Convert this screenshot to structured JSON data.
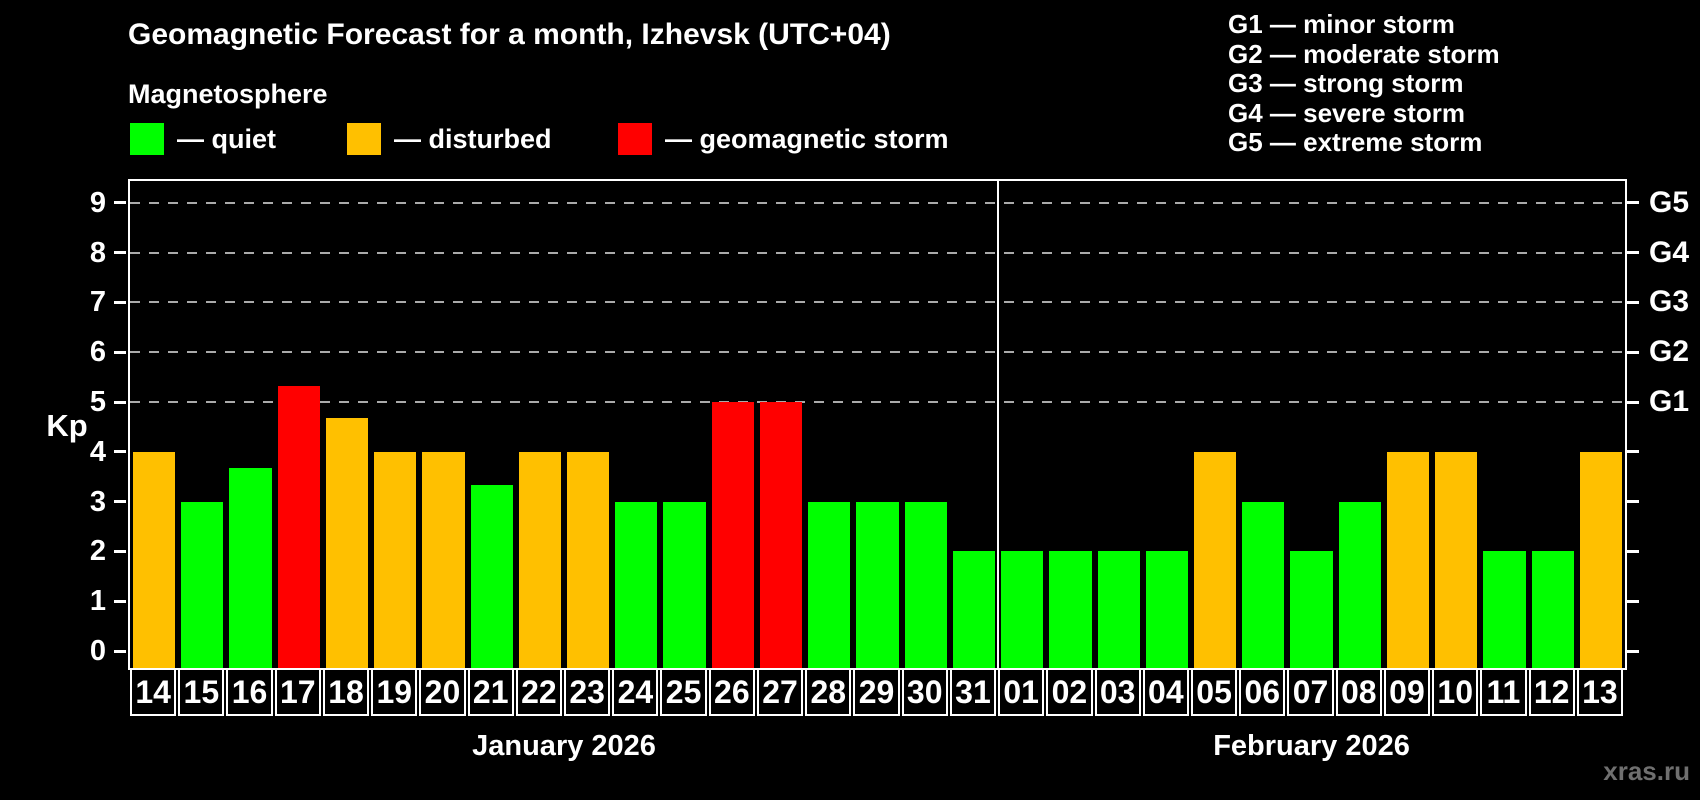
{
  "title": "Geomagnetic Forecast for a month, Izhevsk (UTC+04)",
  "subtitle": "Magnetosphere",
  "legend": {
    "items": [
      {
        "key": "quiet",
        "label": "— quiet",
        "color": "#00ff00"
      },
      {
        "key": "disturbed",
        "label": "— disturbed",
        "color": "#ffc000"
      },
      {
        "key": "storm",
        "label": "— geomagnetic storm",
        "color": "#ff0000"
      }
    ]
  },
  "g_legend": [
    "G1 — minor storm",
    "G2 — moderate storm",
    "G3 — strong storm",
    "G4 — severe storm",
    "G5 — extreme storm"
  ],
  "colors": {
    "quiet": "#00ff00",
    "disturbed": "#ffc000",
    "storm": "#ff0000",
    "grid": "#aaaaaa",
    "axis": "#ffffff",
    "background": "#000000",
    "watermark": "#6f6f6f"
  },
  "watermark": "xras.ru",
  "chart_data": {
    "type": "bar",
    "title": "Geomagnetic Forecast for a month, Izhevsk (UTC+04)",
    "ylabel": "Kp",
    "ylim": [
      0,
      9
    ],
    "yticks": [
      0,
      1,
      2,
      3,
      4,
      5,
      6,
      7,
      8,
      9
    ],
    "gridlines_at": [
      5,
      6,
      7,
      8,
      9
    ],
    "right_axis_labels": [
      {
        "kp": 5,
        "label": "G1"
      },
      {
        "kp": 6,
        "label": "G2"
      },
      {
        "kp": 7,
        "label": "G3"
      },
      {
        "kp": 8,
        "label": "G4"
      },
      {
        "kp": 9,
        "label": "G5"
      }
    ],
    "months": [
      {
        "label": "January 2026",
        "days": 18
      },
      {
        "label": "February 2026",
        "days": 13
      }
    ],
    "month_separator_after": 18,
    "categories": [
      "14",
      "15",
      "16",
      "17",
      "18",
      "19",
      "20",
      "21",
      "22",
      "23",
      "24",
      "25",
      "26",
      "27",
      "28",
      "29",
      "30",
      "31",
      "01",
      "02",
      "03",
      "04",
      "05",
      "06",
      "07",
      "08",
      "09",
      "10",
      "11",
      "12",
      "13"
    ],
    "values": [
      4,
      3,
      3.67,
      5.33,
      4.67,
      4,
      4,
      3.33,
      4,
      4,
      3,
      3,
      5,
      5,
      3,
      3,
      3,
      2,
      2,
      2,
      2,
      2,
      4,
      3,
      2,
      3,
      4,
      4,
      2,
      2,
      4
    ],
    "statuses": [
      "disturbed",
      "quiet",
      "quiet",
      "storm",
      "disturbed",
      "disturbed",
      "disturbed",
      "quiet",
      "disturbed",
      "disturbed",
      "quiet",
      "quiet",
      "storm",
      "storm",
      "quiet",
      "quiet",
      "quiet",
      "quiet",
      "quiet",
      "quiet",
      "quiet",
      "quiet",
      "disturbed",
      "quiet",
      "quiet",
      "quiet",
      "disturbed",
      "disturbed",
      "quiet",
      "quiet",
      "disturbed"
    ]
  }
}
